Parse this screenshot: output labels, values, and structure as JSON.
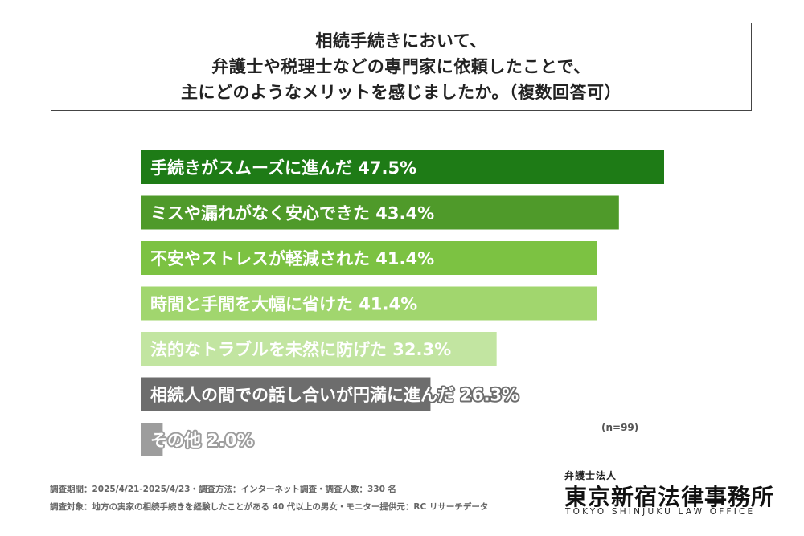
{
  "title": {
    "lines": [
      "相続手続きにおいて、",
      "弁護士や税理士などの専門家に依頼したことで、",
      "主にどのようなメリットを感じましたか。（複数回答可）"
    ]
  },
  "chart_data": {
    "type": "bar",
    "orientation": "horizontal",
    "categories": [
      "手続きがスムーズに進んだ",
      "ミスや漏れがなく安心できた",
      "不安やストレスが軽減された",
      "時間と手間を大幅に省けた",
      "法的なトラブルを未然に防げた",
      "相続人の間での話し合いが円満に進んだ",
      "その他"
    ],
    "values": [
      47.5,
      43.4,
      41.4,
      41.4,
      32.3,
      26.3,
      2.0
    ],
    "value_labels": [
      "47.5%",
      "43.4%",
      "41.4%",
      "41.4%",
      "32.3%",
      "26.3%",
      "2.0%"
    ],
    "colors": [
      "#1e7b16",
      "#4f9a2a",
      "#7cc242",
      "#a1d66e",
      "#c2e5a1",
      "#6d6d6d",
      "#9d9d9d"
    ],
    "xlim": [
      0,
      50
    ],
    "grid": false,
    "legend": "none"
  },
  "note": "(n=99)",
  "footer": {
    "line1": "調査期間：2025/4/21-2025/4/23・調査方法：インターネット調査・調査人数：330 名",
    "line2": "調査対象：地方の実家の相続手続きを経験したことがある 40 代以上の男女・モニター提供元：RC リサーチデータ"
  },
  "logo": {
    "top": "弁護士法人",
    "main": "東京新宿法律事務所",
    "sub": "TOKYO SHINJUKU LAW OFFICE"
  }
}
